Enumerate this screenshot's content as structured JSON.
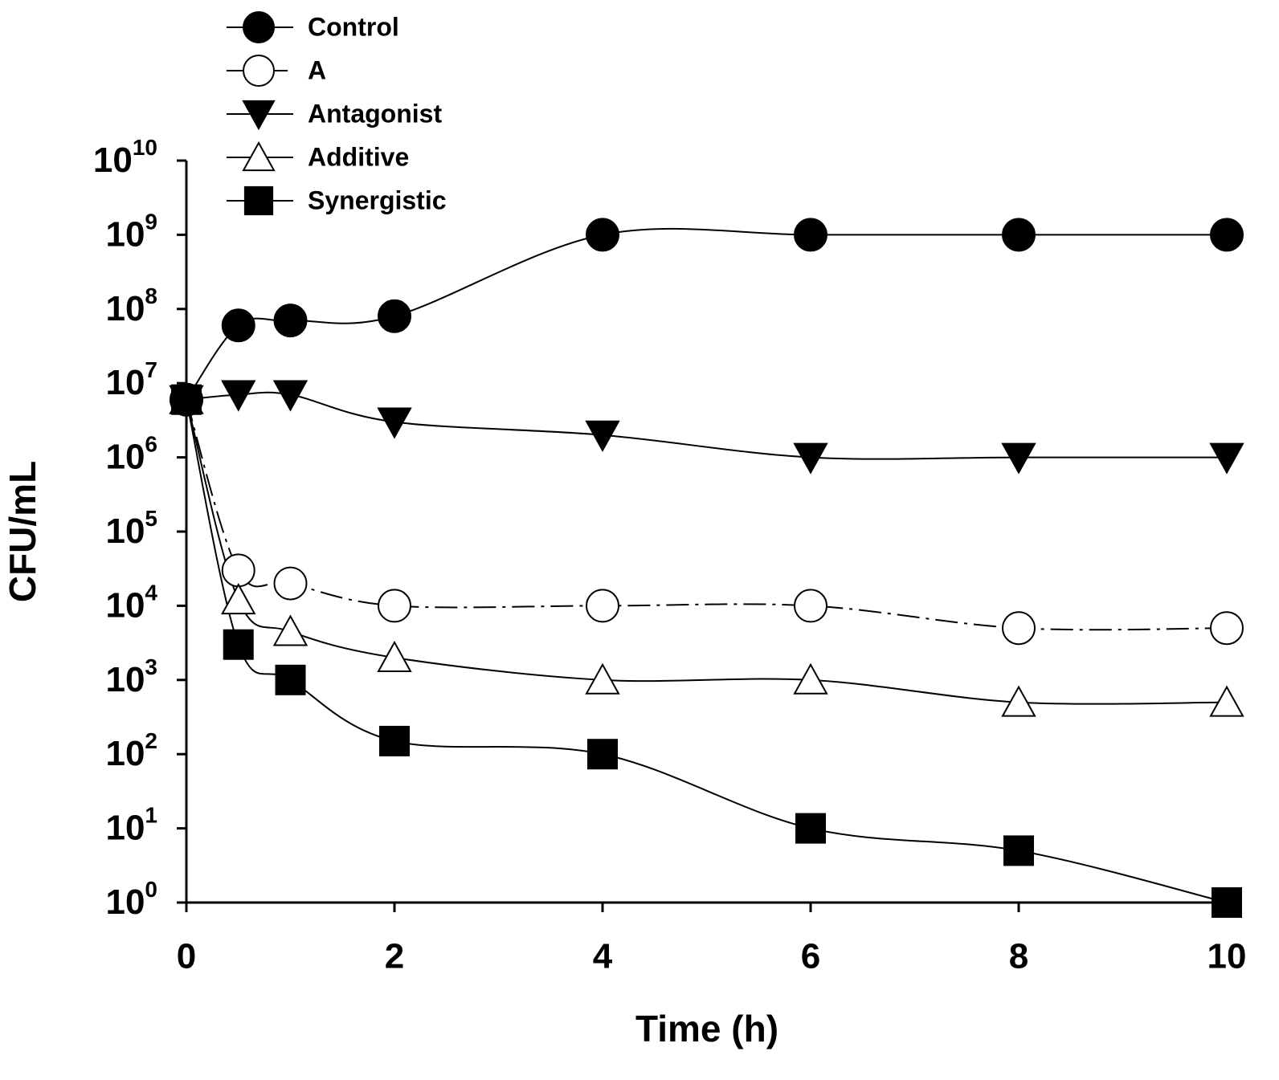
{
  "chart_data": {
    "type": "line",
    "x_label": "Time (h)",
    "y_label": "CFU/mL",
    "x": [
      0,
      0.5,
      1,
      2,
      4,
      6,
      8,
      10
    ],
    "xlim": [
      0,
      10
    ],
    "xticks": [
      0,
      2,
      4,
      6,
      8,
      10
    ],
    "ylim": [
      1,
      10000000000
    ],
    "y_scale": "log",
    "yticks": [
      {
        "value": 1,
        "label": "10",
        "exponent": "0"
      },
      {
        "value": 10,
        "label": "10",
        "exponent": "1"
      },
      {
        "value": 100,
        "label": "10",
        "exponent": "2"
      },
      {
        "value": 1000,
        "label": "10",
        "exponent": "3"
      },
      {
        "value": 10000,
        "label": "10",
        "exponent": "4"
      },
      {
        "value": 100000,
        "label": "10",
        "exponent": "5"
      },
      {
        "value": 1000000,
        "label": "10",
        "exponent": "6"
      },
      {
        "value": 10000000,
        "label": "10",
        "exponent": "7"
      },
      {
        "value": 100000000,
        "label": "10",
        "exponent": "8"
      },
      {
        "value": 1000000000,
        "label": "10",
        "exponent": "9"
      },
      {
        "value": 10000000000,
        "label": "10",
        "exponent": "10"
      }
    ],
    "legend_position": "top-left",
    "series": [
      {
        "name": "Control",
        "color": "#000000",
        "marker": "circle",
        "filled": true,
        "dashed": false,
        "values": [
          6000000,
          60000000,
          70000000,
          80000000,
          1000000000,
          1000000000,
          1000000000,
          1000000000
        ]
      },
      {
        "name": "A",
        "color": "#000000",
        "marker": "circle",
        "filled": false,
        "dashed": true,
        "values": [
          6000000,
          30000,
          20000,
          10000,
          10000,
          10000,
          5000,
          5000
        ]
      },
      {
        "name": "Antagonist",
        "color": "#000000",
        "marker": "triangle-down",
        "filled": true,
        "dashed": false,
        "values": [
          6000000,
          7000000,
          7000000,
          3000000,
          2000000,
          1000000,
          1000000,
          1000000
        ]
      },
      {
        "name": "Additive",
        "color": "#000000",
        "marker": "triangle-up",
        "filled": false,
        "dashed": false,
        "values": [
          6000000,
          12000,
          4500,
          2000,
          1000,
          1000,
          500,
          500
        ]
      },
      {
        "name": "Synergistic",
        "color": "#000000",
        "marker": "square",
        "filled": true,
        "dashed": false,
        "values": [
          6000000,
          3000,
          1000,
          150,
          100,
          10,
          5,
          1
        ]
      }
    ]
  }
}
